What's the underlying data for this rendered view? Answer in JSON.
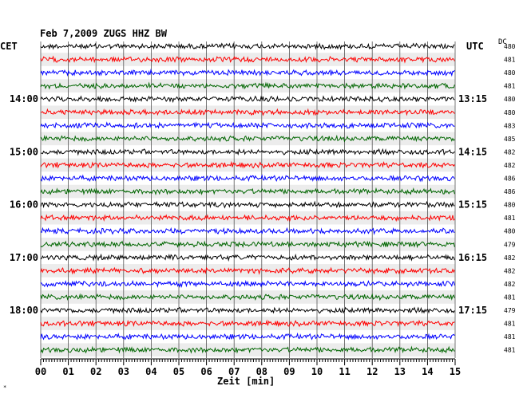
{
  "header": {
    "title": "Feb 7,2009   ZUGS HHZ BW",
    "left_timezone": "CET",
    "right_timezone": "UTC",
    "dc_label": "DC"
  },
  "footer": {
    "corner_mark": "*"
  },
  "chart_data": {
    "type": "line",
    "title": "Feb 7,2009   ZUGS HHZ BW",
    "xlabel": "Zeit [min]",
    "ylabel": "",
    "xlim": [
      0,
      15
    ],
    "x_ticks": [
      "00",
      "01",
      "02",
      "03",
      "04",
      "05",
      "06",
      "07",
      "08",
      "09",
      "10",
      "11",
      "12",
      "13",
      "14",
      "15"
    ],
    "grid": true,
    "left_hour_labels": [
      {
        "row": 4,
        "label": "14:00"
      },
      {
        "row": 8,
        "label": "15:00"
      },
      {
        "row": 12,
        "label": "16:00"
      },
      {
        "row": 16,
        "label": "17:00"
      },
      {
        "row": 20,
        "label": "18:00"
      }
    ],
    "right_hour_labels": [
      {
        "row": 4,
        "label": "13:15"
      },
      {
        "row": 8,
        "label": "14:15"
      },
      {
        "row": 12,
        "label": "15:15"
      },
      {
        "row": 16,
        "label": "16:15"
      },
      {
        "row": 20,
        "label": "17:15"
      }
    ],
    "trace_colors": [
      "#000000",
      "#ff0000",
      "#0000ff",
      "#006600"
    ],
    "dc_offsets": [
      480,
      481,
      480,
      481,
      480,
      480,
      483,
      485,
      482,
      482,
      486,
      486,
      480,
      481,
      480,
      479,
      482,
      482,
      482,
      481,
      479,
      481,
      481,
      481
    ]
  }
}
